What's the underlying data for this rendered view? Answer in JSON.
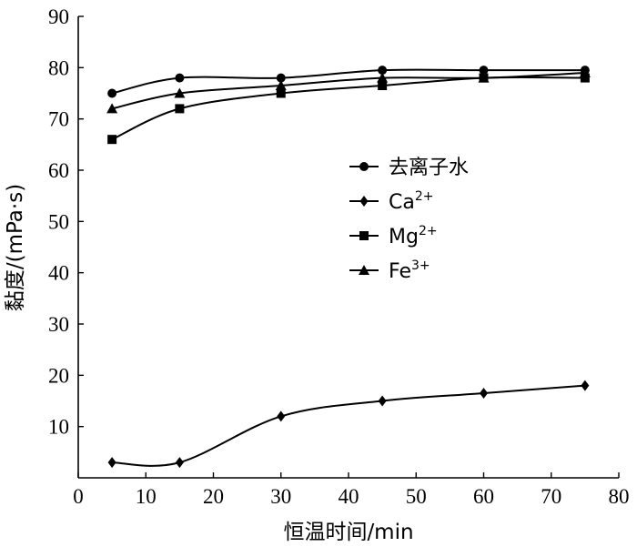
{
  "chart_data": {
    "type": "line",
    "xlabel": "恒温时间/min",
    "ylabel": "黏度/(mPa·s)",
    "xlim": [
      0,
      80
    ],
    "ylim": [
      0,
      90
    ],
    "x_ticks": [
      0,
      10,
      20,
      30,
      40,
      50,
      60,
      70,
      80
    ],
    "y_ticks": [
      10,
      20,
      30,
      40,
      50,
      60,
      70,
      80,
      90
    ],
    "grid": false,
    "legend_position": "right-middle",
    "series": [
      {
        "name": "去离子水",
        "name_base": "去离子水",
        "name_sup": "",
        "marker": "circle",
        "points": [
          [
            5,
            75
          ],
          [
            15,
            78
          ],
          [
            30,
            78
          ],
          [
            45,
            79.5
          ],
          [
            60,
            79.5
          ],
          [
            75,
            79.5
          ]
        ]
      },
      {
        "name": "Ca²⁺",
        "name_base": "Ca",
        "name_sup": "2+",
        "marker": "diamond",
        "points": [
          [
            5,
            3
          ],
          [
            15,
            3
          ],
          [
            30,
            12
          ],
          [
            45,
            15
          ],
          [
            60,
            16.5
          ],
          [
            75,
            18
          ]
        ]
      },
      {
        "name": "Mg²⁺",
        "name_base": "Mg",
        "name_sup": "2+",
        "marker": "square",
        "points": [
          [
            5,
            66
          ],
          [
            15,
            72
          ],
          [
            30,
            75
          ],
          [
            45,
            76.5
          ],
          [
            60,
            78
          ],
          [
            75,
            78
          ]
        ]
      },
      {
        "name": "Fe³⁺",
        "name_base": "Fe",
        "name_sup": "3+",
        "marker": "triangle",
        "points": [
          [
            5,
            72
          ],
          [
            15,
            75
          ],
          [
            30,
            76.5
          ],
          [
            45,
            78
          ],
          [
            60,
            78
          ],
          [
            75,
            79
          ]
        ]
      }
    ]
  }
}
